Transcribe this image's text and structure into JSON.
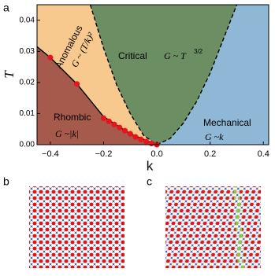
{
  "chart_data": {
    "type": "phase-diagram",
    "xlabel": "k",
    "ylabel": "T",
    "xlim": [
      -0.45,
      0.42
    ],
    "ylim": [
      0,
      0.045
    ],
    "xticks": [
      {
        "value": -0.4,
        "label": "−0.4"
      },
      {
        "value": -0.2,
        "label": "−0.2"
      },
      {
        "value": 0,
        "label": "0.0"
      },
      0.2,
      0.4
    ],
    "yticks": [
      {
        "value": 0,
        "label": "0.00"
      },
      {
        "value": 0.01,
        "label": "0.01"
      },
      {
        "value": 0.02,
        "label": "0.02"
      },
      {
        "value": 0.03,
        "label": "0.03"
      },
      {
        "value": 0.04,
        "label": "0.04"
      }
    ],
    "regions": [
      {
        "label": "Rhombic",
        "formula": "G ~|k|",
        "color": "#a65a4b"
      },
      {
        "label": "Anomalous",
        "formula": "G ~ (T/k)²",
        "color": "#f8c98e"
      },
      {
        "label": "Critical",
        "formula": "G ~ T",
        "formula_sup": "3/2",
        "color": "#6b8f63"
      },
      {
        "label": "Mechanical",
        "formula": "G ~k",
        "color": "#8fb8d6"
      }
    ],
    "series": [
      {
        "color": "#000000",
        "dashed": false,
        "x": [
          -0.45,
          -0.4,
          -0.3,
          -0.2,
          -0.1,
          0
        ],
        "values": [
          0.0315,
          0.028,
          0.0195,
          0.009,
          0.0035,
          0
        ]
      },
      {
        "color": "#000000",
        "dashed": true,
        "x": [
          -0.25,
          -0.2,
          -0.15,
          -0.1,
          -0.05,
          0
        ],
        "values": [
          0.045,
          0.031,
          0.019,
          0.01,
          0.003,
          0
        ]
      },
      {
        "color": "#000000",
        "dashed": true,
        "x": [
          0,
          0.05,
          0.1,
          0.15,
          0.2,
          0.25,
          0.3
        ],
        "values": [
          0,
          0.002,
          0.007,
          0.014,
          0.023,
          0.034,
          0.045
        ]
      }
    ],
    "points": {
      "color": "#e8141b",
      "x": [
        -0.4,
        -0.3,
        -0.2,
        -0.18,
        -0.16,
        -0.14,
        -0.12,
        -0.1,
        -0.08,
        -0.06,
        -0.04,
        -0.02,
        0
      ],
      "values": [
        0.028,
        0.0195,
        0.0085,
        0.0075,
        0.0065,
        0.0055,
        0.0045,
        0.0035,
        0.0025,
        0.0017,
        0.001,
        0.0004,
        0
      ]
    },
    "panels": [
      "a",
      "b",
      "c"
    ]
  }
}
